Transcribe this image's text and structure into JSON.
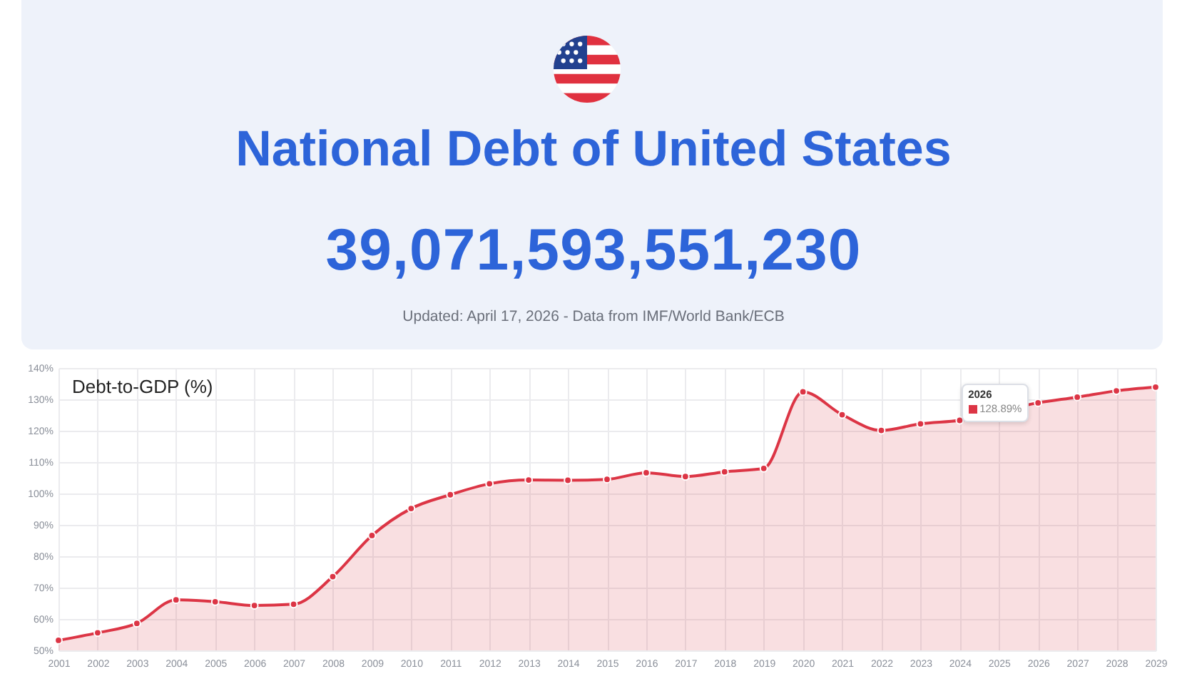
{
  "chart_data": {
    "type": "area",
    "title": "National Debt of United States",
    "subtitle": "39,071,593,551,230",
    "ylabel": "Debt-to-GDP (%)",
    "annotations": [
      "Updated: April 17, 2026 - Data from IMF/World Bank/ECB",
      {
        "text": "2026\n128.89%",
        "x": "2026",
        "y": 128.89
      }
    ],
    "categories": [
      "2001",
      "2002",
      "2003",
      "2004",
      "2005",
      "2006",
      "2007",
      "2008",
      "2009",
      "2010",
      "2011",
      "2012",
      "2013",
      "2014",
      "2015",
      "2016",
      "2017",
      "2018",
      "2019",
      "2020",
      "2021",
      "2022",
      "2023",
      "2024",
      "2025",
      "2026",
      "2027",
      "2028",
      "2029"
    ],
    "values": [
      53.2,
      55.6,
      58.6,
      66.1,
      65.5,
      64.3,
      64.7,
      73.5,
      86.6,
      95.2,
      99.6,
      103.1,
      104.3,
      104.2,
      104.5,
      106.6,
      105.4,
      106.9,
      108.0,
      132.4,
      125.1,
      120.1,
      122.2,
      123.3,
      null,
      128.89,
      130.7,
      132.7,
      133.9
    ],
    "color": "#dc3545",
    "ylim": [
      50,
      140
    ],
    "yticks": [
      {
        "value": 50,
        "label": "50%"
      },
      {
        "value": 60,
        "label": "60%"
      },
      {
        "value": 70,
        "label": "70%"
      },
      {
        "value": 80,
        "label": "80%"
      },
      {
        "value": 90,
        "label": "90%"
      },
      {
        "value": 100,
        "label": "100%"
      },
      {
        "value": 110,
        "label": "110%"
      },
      {
        "value": 120,
        "label": "120%"
      },
      {
        "value": 130,
        "label": "130%"
      },
      {
        "value": 140,
        "label": "140%"
      }
    ],
    "grid": true,
    "marker": "circle"
  }
}
